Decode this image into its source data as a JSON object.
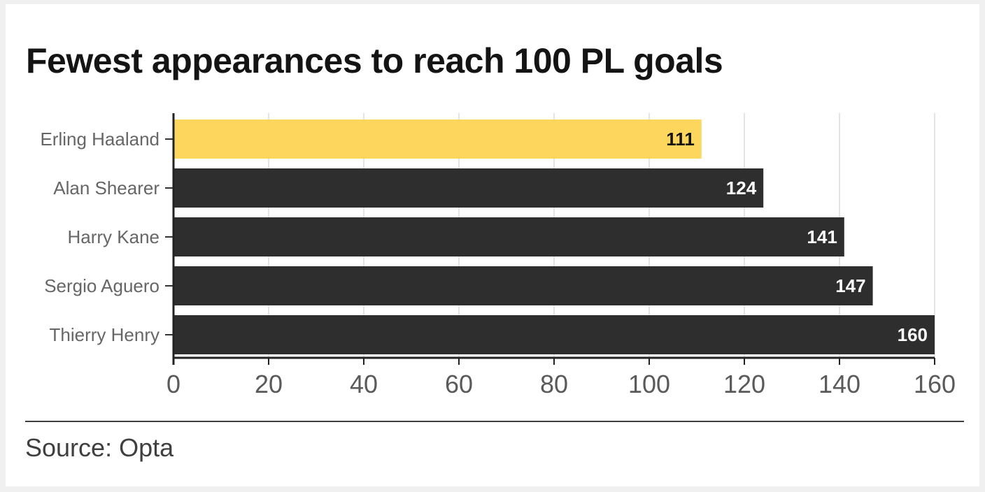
{
  "title": "Fewest appearances to reach 100 PL goals",
  "source": "Source: Opta",
  "colors": {
    "highlight": "#fdd75d",
    "default": "#2e2e2e",
    "highlight_label": "#141414",
    "default_label": "#ffffff"
  },
  "chart_data": {
    "type": "bar",
    "orientation": "horizontal",
    "categories": [
      "Erling Haaland",
      "Alan Shearer",
      "Harry Kane",
      "Sergio Aguero",
      "Thierry Henry"
    ],
    "values": [
      111,
      124,
      141,
      147,
      160
    ],
    "value_labels": [
      "111",
      "124",
      "141",
      "147",
      "160"
    ],
    "highlight": "Erling Haaland",
    "xlim": [
      0,
      160
    ],
    "xticks": [
      0,
      20,
      40,
      60,
      80,
      100,
      120,
      140,
      160
    ],
    "grid": true,
    "title": "Fewest appearances to reach 100 PL goals"
  }
}
